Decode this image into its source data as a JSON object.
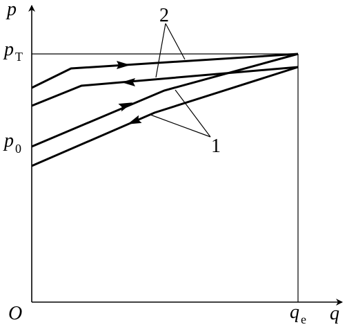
{
  "labels": {
    "origin": "O",
    "y_axis": "p",
    "x_axis": "q",
    "pT_main": "p",
    "pT_sub": "T",
    "p0_main": "p",
    "p0_sub": "0",
    "qe_main": "q",
    "qe_sub": "e",
    "curve_1": "1",
    "curve_2": "2"
  },
  "colors": {
    "stroke": "#000000",
    "background": "#ffffff"
  }
}
